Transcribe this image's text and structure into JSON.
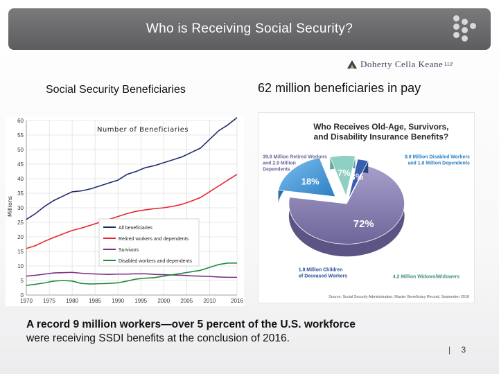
{
  "slide": {
    "title": "Who is Receiving Social Security?",
    "logo_text": "Doherty Cella Keane",
    "logo_suffix": "LLP",
    "left_heading": "Social Security Beneficiaries",
    "right_heading": "62 million beneficiaries in pay",
    "footer_bold": "A record 9 million workers—over 5 percent of the U.S. workforce",
    "footer_normal": "were receiving SSDI benefits at the conclusion of 2016.",
    "page_number": "3",
    "page_separator": "|"
  },
  "colors": {
    "title_bar": "#6b6b6d",
    "all_beneficiaries": "#1f2a6b",
    "retired": "#e8242c",
    "survivors": "#7b2f86",
    "disabled": "#1e8a3b",
    "pie_retired": "#8f86b6",
    "pie_disabled": "#3f97d9",
    "pie_widows": "#8fd0c3",
    "pie_children": "#3a5eb0"
  },
  "chart_data": [
    {
      "type": "line",
      "title": "Number of Beneficiaries",
      "ylabel": "Millions",
      "xlim": [
        1970,
        2016
      ],
      "ylim": [
        0,
        60
      ],
      "xticks": [
        "1970",
        "1975",
        "1980",
        "1985",
        "1990",
        "1995",
        "2000",
        "2005",
        "2010",
        "2016"
      ],
      "xtick_values": [
        1970,
        1975,
        1980,
        1985,
        1990,
        1995,
        2000,
        2005,
        2010,
        2016
      ],
      "yticks": [
        0,
        5,
        10,
        15,
        20,
        25,
        30,
        35,
        40,
        45,
        50,
        55,
        60
      ],
      "grid": true,
      "legend_position": "center-right",
      "x": [
        1970,
        1972,
        1974,
        1976,
        1978,
        1980,
        1982,
        1984,
        1986,
        1988,
        1990,
        1992,
        1994,
        1996,
        1998,
        2000,
        2002,
        2004,
        2006,
        2008,
        2010,
        2012,
        2014,
        2016
      ],
      "series": [
        {
          "name": "All beneficiaries",
          "color_key": "all_beneficiaries",
          "values": [
            26.0,
            28.0,
            30.5,
            32.5,
            34.0,
            35.5,
            35.8,
            36.5,
            37.5,
            38.5,
            39.5,
            41.5,
            42.5,
            43.8,
            44.5,
            45.5,
            46.5,
            47.5,
            49.0,
            50.5,
            53.5,
            56.5,
            58.5,
            61.0
          ]
        },
        {
          "name": "Retired workers and dependents",
          "color_key": "retired",
          "values": [
            16.0,
            17.0,
            18.5,
            19.8,
            21.0,
            22.2,
            23.0,
            24.0,
            25.0,
            26.0,
            27.0,
            28.0,
            28.8,
            29.3,
            29.7,
            30.0,
            30.5,
            31.2,
            32.3,
            33.5,
            35.5,
            37.5,
            39.5,
            41.5
          ]
        },
        {
          "name": "Survivors",
          "color_key": "survivors",
          "values": [
            6.5,
            6.8,
            7.2,
            7.6,
            7.7,
            7.8,
            7.5,
            7.3,
            7.2,
            7.1,
            7.2,
            7.2,
            7.3,
            7.3,
            7.1,
            7.0,
            6.9,
            6.8,
            6.6,
            6.5,
            6.4,
            6.2,
            6.1,
            6.1
          ]
        },
        {
          "name": "Disabled workers and dependents",
          "color_key": "disabled",
          "values": [
            3.3,
            3.7,
            4.2,
            4.8,
            5.0,
            4.8,
            4.0,
            3.8,
            3.9,
            4.0,
            4.2,
            4.8,
            5.5,
            5.8,
            6.0,
            6.5,
            7.0,
            7.5,
            8.0,
            8.5,
            9.5,
            10.5,
            11.0,
            11.0
          ]
        }
      ]
    },
    {
      "type": "pie",
      "style": "3d",
      "title_line1": "Who Receives Old-Age, Survivors,",
      "title_line2": "and Disability Insurance Benefits?",
      "slices": [
        {
          "label": "72%",
          "value": 72,
          "color_key": "pie_retired",
          "annotation": [
            "39.8 Million Retired Workers",
            "and 2.9 Million",
            "Dependents"
          ]
        },
        {
          "label": "18%",
          "value": 18,
          "color_key": "pie_disabled",
          "annotation": [
            "8.9 Million Disabled Workers",
            "and 1.8 Million Dependents"
          ]
        },
        {
          "label": "7%",
          "value": 7,
          "color_key": "pie_widows",
          "annotation": [
            "4.2 Million Widows/Widowers"
          ]
        },
        {
          "label": "3%",
          "value": 3,
          "color_key": "pie_children",
          "annotation": [
            "1.8 Million Children",
            "of Deceased Workers"
          ]
        }
      ],
      "source": "Source: Social Security Administration, Master Beneficiary Record, September 2016"
    }
  ]
}
